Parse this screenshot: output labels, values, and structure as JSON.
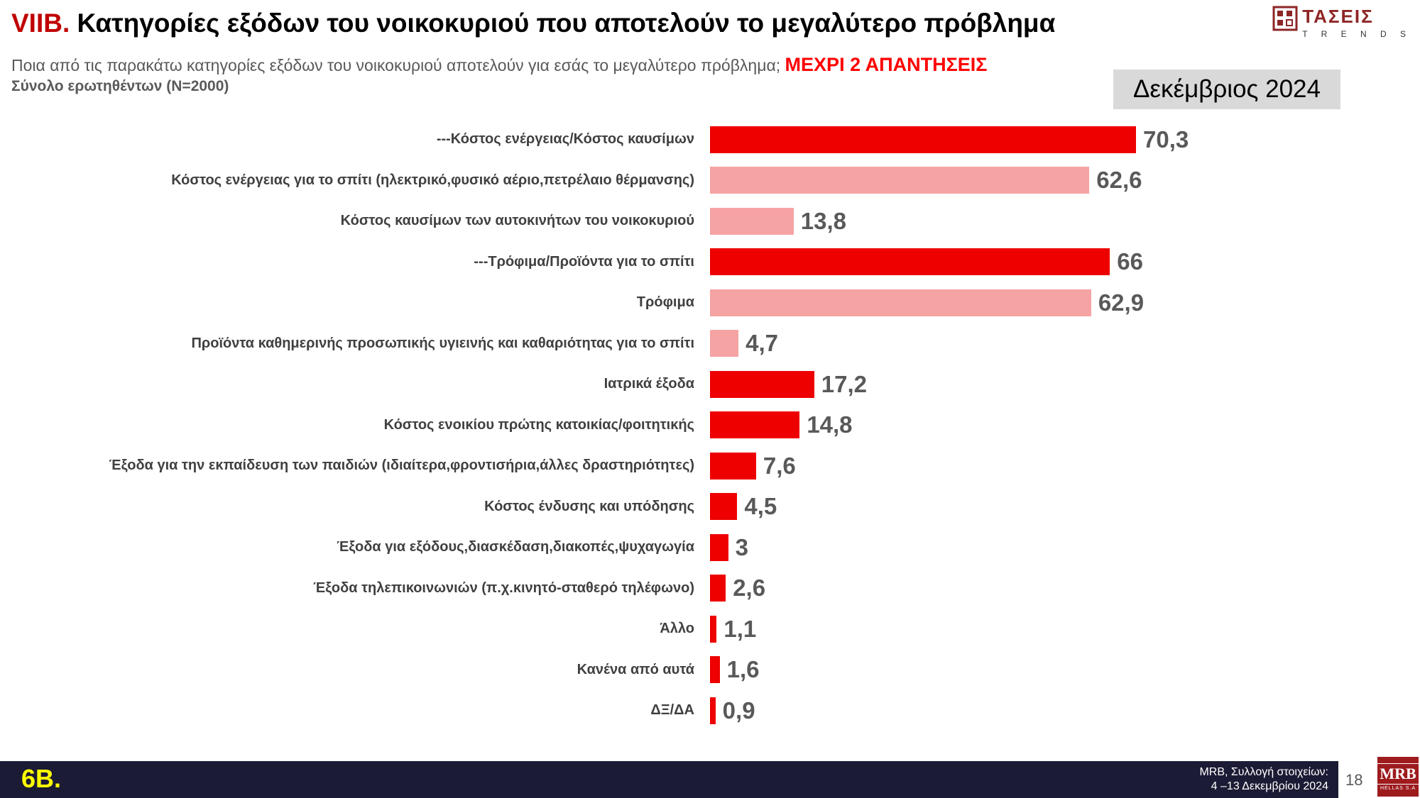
{
  "header": {
    "title_prefix": "VIIB.",
    "title": " Κατηγορίες εξόδων του νοικοκυριού  που αποτελούν το μεγαλύτερο πρόβλημα",
    "subtitle": "Ποια από τις παρακάτω κατηγορίες εξόδων του νοικοκυριού  αποτελούν για εσάς το μεγαλύτερο πρόβλημα; ",
    "subtitle_highlight": "ΜΕΧΡΙ 2 ΑΠΑΝΤΗΣΕΙΣ",
    "sample": "Σύνολο ερωτηθέντων (N=2000)",
    "date_box": "Δεκέμβριος 2024",
    "logo_text": "ΤΑΣΕΙΣ",
    "logo_sub": "T R E N D S"
  },
  "chart_data": {
    "type": "bar",
    "orientation": "horizontal",
    "title": "Κατηγορίες εξόδων του νοικοκυριού που αποτελούν το μεγαλύτερο πρόβλημα",
    "xlim": [
      0,
      80
    ],
    "grid": false,
    "legend": false,
    "categories": [
      "---Κόστος ενέργειας/Κόστος καυσίμων",
      "Κόστος ενέργειας για το σπίτι (ηλεκτρικό,φυσικό αέριο,πετρέλαιο θέρμανσης)",
      "Κόστος καυσίμων των αυτοκινήτων του νοικοκυριού",
      "---Τρόφιμα/Προϊόντα για το σπίτι",
      "Τρόφιμα",
      "Προϊόντα καθημερινής προσωπικής υγιεινής και καθαριότητας για το σπίτι",
      "Ιατρικά έξοδα",
      "Κόστος ενοικίου πρώτης κατοικίας/φοιτητικής",
      "Έξοδα για την εκπαίδευση των παιδιών (ιδιαίτερα,φροντισήρια,άλλες δραστηριότητες)",
      "Κόστος ένδυσης και υπόδησης",
      "Έξοδα για εξόδους,διασκέδαση,διακοπές,ψυχαγωγία",
      "Έξοδα τηλεπικοινωνιών (π.χ.κινητό-σταθερό τηλέφωνο)",
      "Άλλο",
      "Κανένα από αυτά",
      "ΔΞ/ΔΑ"
    ],
    "values": [
      70.3,
      62.6,
      13.8,
      66,
      62.9,
      4.7,
      17.2,
      14.8,
      7.6,
      4.5,
      3,
      2.6,
      1.1,
      1.6,
      0.9
    ],
    "value_labels": [
      "70,3",
      "62,6",
      "13,8",
      "66",
      "62,9",
      "4,7",
      "17,2",
      "14,8",
      "7,6",
      "4,5",
      "3",
      "2,6",
      "1,1",
      "1,6",
      "0,9"
    ],
    "bar_colors": [
      "#ee0000",
      "#f5a3a3",
      "#f5a3a3",
      "#ee0000",
      "#f5a3a3",
      "#f5a3a3",
      "#ee0000",
      "#ee0000",
      "#ee0000",
      "#ee0000",
      "#ee0000",
      "#ee0000",
      "#ee0000",
      "#ee0000",
      "#ee0000"
    ]
  },
  "footer": {
    "slide_label": "6Β.",
    "source_line1": "MRB, Συλλογή στοιχείων:",
    "source_line2": "4 –13 Δεκεμβρίου 2024",
    "page_number": "18",
    "mrb_logo": "MRB",
    "mrb_logo_sub": "HELLAS S.A"
  },
  "colors": {
    "bright_red": "#ee0000",
    "pink": "#f5a3a3",
    "title_prefix_red": "#c00000",
    "highlight_red": "#ff0000",
    "value_gray": "#595959",
    "date_box_bg": "#d9d9d9",
    "footer_bg": "#1b1b35",
    "slide_label_yellow": "#ffff00",
    "mrb_logo_bg": "#9e1b1e"
  }
}
